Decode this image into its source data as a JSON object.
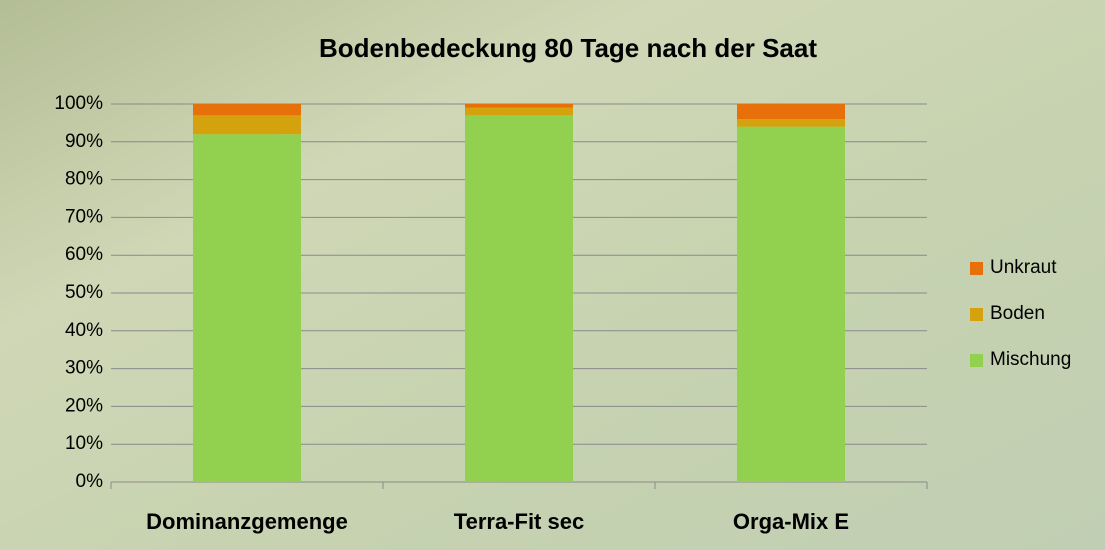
{
  "chart_data": {
    "type": "stacked_bar",
    "title": "Bodenbedeckung 80 Tage nach der Saat",
    "categories": [
      "Dominanzgemenge",
      "Terra-Fit sec",
      "Orga-Mix E"
    ],
    "series": [
      {
        "name": "Mischung",
        "color": "#92d050",
        "values": [
          92,
          97,
          94
        ]
      },
      {
        "name": "Boden",
        "color": "#d4a20c",
        "values": [
          5,
          2,
          2
        ]
      },
      {
        "name": "Unkraut",
        "color": "#e8700a",
        "values": [
          3,
          1,
          4
        ]
      }
    ],
    "ylim": [
      0,
      100
    ],
    "yticks": [
      {
        "value": 0,
        "label": "0%"
      },
      {
        "value": 10,
        "label": "10%"
      },
      {
        "value": 20,
        "label": "20%"
      },
      {
        "value": 30,
        "label": "30%"
      },
      {
        "value": 40,
        "label": "40%"
      },
      {
        "value": 50,
        "label": "50%"
      },
      {
        "value": 60,
        "label": "60%"
      },
      {
        "value": 70,
        "label": "70%"
      },
      {
        "value": 80,
        "label": "80%"
      },
      {
        "value": 90,
        "label": "90%"
      },
      {
        "value": 100,
        "label": "100%"
      }
    ],
    "grid": true,
    "legend": "right"
  }
}
